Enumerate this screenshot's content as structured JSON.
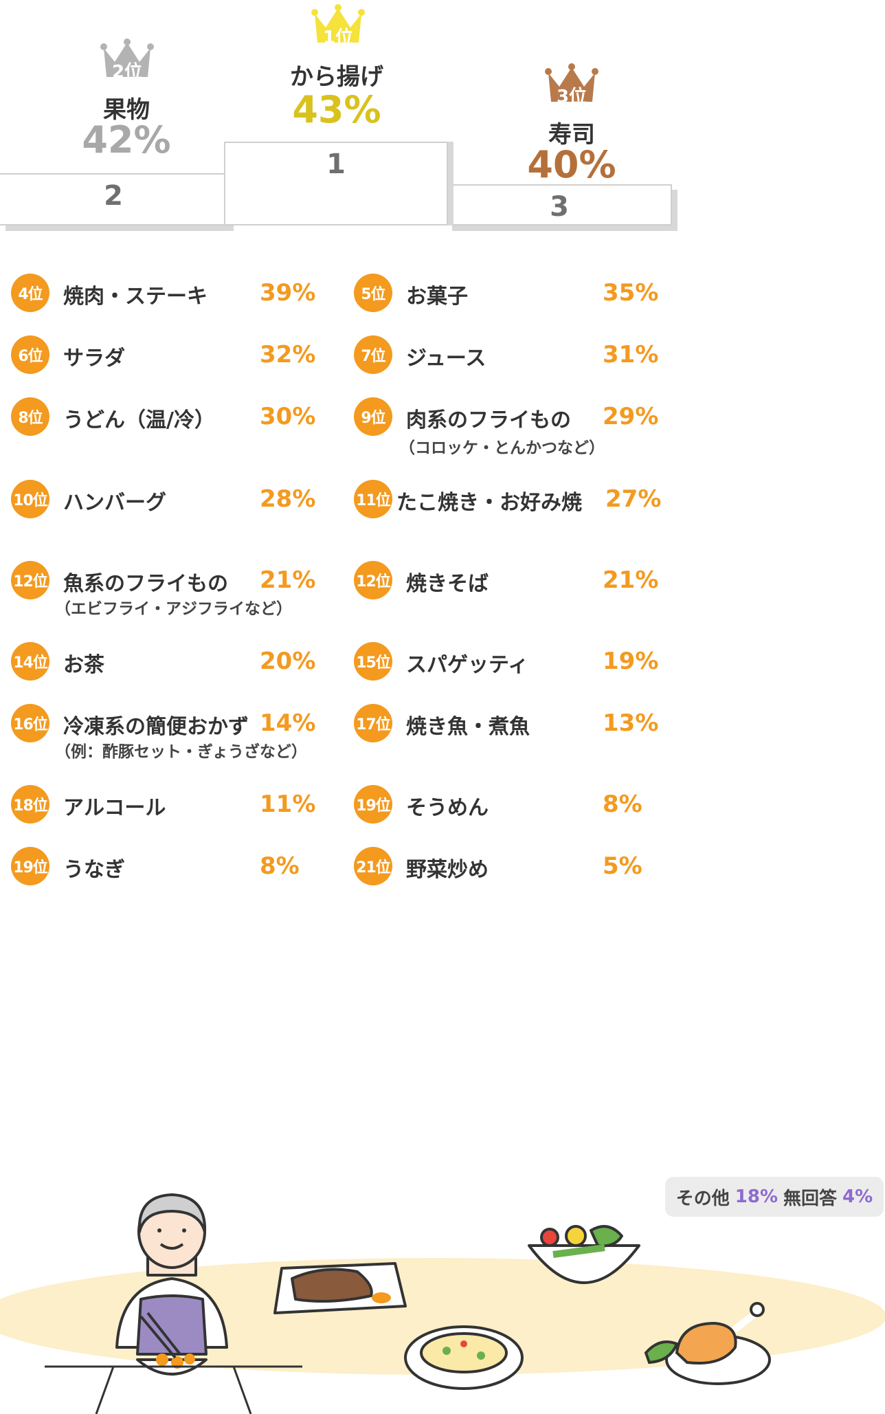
{
  "podium": {
    "first": {
      "rank_label": "1位",
      "name": "から揚げ",
      "pct": "43%",
      "step": "1",
      "color": "#d9c21d",
      "crown_color": "#f5e23a"
    },
    "second": {
      "rank_label": "2位",
      "name": "果物",
      "pct": "42%",
      "step": "2",
      "color": "#a8a8a8",
      "crown_color": "#b3b3b3"
    },
    "third": {
      "rank_label": "3位",
      "name": "寿司",
      "pct": "40%",
      "step": "3",
      "color": "#b5703a",
      "crown_color": "#b87a4b"
    }
  },
  "ranking": [
    {
      "rank": "4位",
      "name": "焼肉・ステーキ",
      "note": "",
      "pct": "39%"
    },
    {
      "rank": "5位",
      "name": "お菓子",
      "note": "",
      "pct": "35%"
    },
    {
      "rank": "6位",
      "name": "サラダ",
      "note": "",
      "pct": "32%"
    },
    {
      "rank": "7位",
      "name": "ジュース",
      "note": "",
      "pct": "31%"
    },
    {
      "rank": "8位",
      "name": "うどん（温/冷）",
      "note": "",
      "pct": "30%"
    },
    {
      "rank": "9位",
      "name": "肉系のフライもの",
      "note": "（コロッケ・とんかつなど）",
      "pct": "29%"
    },
    {
      "rank": "10位",
      "name": "ハンバーグ",
      "note": "",
      "pct": "28%"
    },
    {
      "rank": "11位",
      "name": "たこ焼き・お好み焼",
      "note": "",
      "pct": "27%"
    },
    {
      "rank": "12位",
      "name": "魚系のフライもの",
      "note": "（エビフライ・アジフライなど）",
      "pct": "21%"
    },
    {
      "rank": "12位",
      "name": "焼きそば",
      "note": "",
      "pct": "21%"
    },
    {
      "rank": "14位",
      "name": "お茶",
      "note": "",
      "pct": "20%"
    },
    {
      "rank": "15位",
      "name": "スパゲッティ",
      "note": "",
      "pct": "19%"
    },
    {
      "rank": "16位",
      "name": "冷凍系の簡便おかず",
      "note": "（例：酢豚セット・ぎょうざなど）",
      "pct": "14%"
    },
    {
      "rank": "17位",
      "name": "焼き魚・煮魚",
      "note": "",
      "pct": "13%"
    },
    {
      "rank": "18位",
      "name": "アルコール",
      "note": "",
      "pct": "11%"
    },
    {
      "rank": "19位",
      "name": "そうめん",
      "note": "",
      "pct": "8%"
    },
    {
      "rank": "19位",
      "name": "うなぎ",
      "note": "",
      "pct": "8%"
    },
    {
      "rank": "21位",
      "name": "野菜炒め",
      "note": "",
      "pct": "5%"
    }
  ],
  "other": {
    "other_label": "その他",
    "other_pct": "18%",
    "none_label": "無回答",
    "none_pct": "4%"
  },
  "colors": {
    "accent": "#f39a1f",
    "purple": "#8e6ad0",
    "table": "#fcefc9"
  },
  "chart_data": {
    "type": "bar",
    "categories": [
      "から揚げ",
      "果物",
      "寿司",
      "焼肉・ステーキ",
      "お菓子",
      "サラダ",
      "ジュース",
      "うどん（温/冷）",
      "肉系のフライもの",
      "ハンバーグ",
      "たこ焼き・お好み焼",
      "魚系のフライもの",
      "焼きそば",
      "お茶",
      "スパゲッティ",
      "冷凍系の簡便おかず",
      "焼き魚・煮魚",
      "アルコール",
      "そうめん",
      "うなぎ",
      "野菜炒め",
      "その他",
      "無回答"
    ],
    "values": [
      43,
      42,
      40,
      39,
      35,
      32,
      31,
      30,
      29,
      28,
      27,
      21,
      21,
      20,
      19,
      14,
      13,
      11,
      8,
      8,
      5,
      18,
      4
    ],
    "unit": "%"
  }
}
